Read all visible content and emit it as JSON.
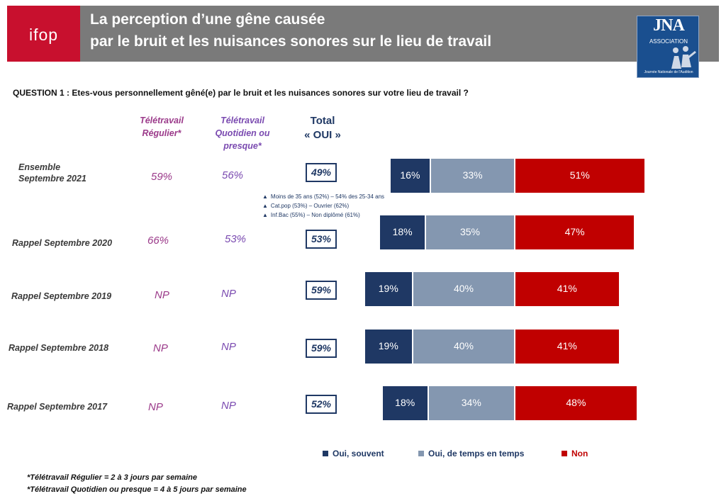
{
  "header": {
    "logo_text": "ifop",
    "title_line1": "La perception d’une gêne causée",
    "title_line2": "par le bruit et les nuisances sonores sur le lieu de travail",
    "partner_logo": {
      "name": "JNA",
      "sub": "ASSOCIATION",
      "caption": "Journée Nationale de l'Audition"
    }
  },
  "question": "QUESTION 1  : Etes-vous personnellement gêné(e) par le bruit et les nuisances sonores sur votre lieu de travail ?",
  "columns": {
    "teletravail_regulier": [
      "Télétravail",
      "Régulier*"
    ],
    "teletravail_quotidien": [
      "Télétravail",
      "Quotidien ou",
      "presque*"
    ],
    "total": [
      "Total",
      "« OUI »"
    ]
  },
  "notes": [
    "Moins de 35 ans (52%) – 54% des 25-34 ans",
    "Cat.pop (53%) – Ouvrier (62%)",
    "Inf.Bac (55%) – Non diplômé (61%)"
  ],
  "colors": {
    "oui_souvent": "#1f3864",
    "oui_temps": "#8497b0",
    "non": "#c00000",
    "header": "#7a7a7a",
    "ifop": "#c8102e"
  },
  "chart_data": {
    "type": "bar",
    "orientation": "horizontal",
    "stacked": true,
    "categories": [
      "Ensemble Septembre 2021",
      "Rappel Septembre 2020",
      "Rappel Septembre 2019",
      "Rappel Septembre 2018",
      "Rappel Septembre 2017"
    ],
    "rows": [
      {
        "label": [
          "Ensemble",
          "Septembre 2021"
        ],
        "teletravail_regulier": "59%",
        "teletravail_quotidien": "56%",
        "total_oui": "49%"
      },
      {
        "label": [
          "Rappel Septembre 2020"
        ],
        "teletravail_regulier": "66%",
        "teletravail_quotidien": "53%",
        "total_oui": "53%"
      },
      {
        "label": [
          "Rappel Septembre 2019"
        ],
        "teletravail_regulier": "NP",
        "teletravail_quotidien": "NP",
        "total_oui": "59%"
      },
      {
        "label": [
          "Rappel Septembre 2018"
        ],
        "teletravail_regulier": "NP",
        "teletravail_quotidien": "NP",
        "total_oui": "59%"
      },
      {
        "label": [
          "Rappel Septembre 2017"
        ],
        "teletravail_regulier": "NP",
        "teletravail_quotidien": "NP",
        "total_oui": "52%"
      }
    ],
    "series": [
      {
        "name": "Oui, souvent",
        "values": [
          16,
          18,
          19,
          19,
          18
        ],
        "labels": [
          "16%",
          "18%",
          "19%",
          "19%",
          "18%"
        ]
      },
      {
        "name": "Oui, de temps en temps",
        "values": [
          33,
          35,
          40,
          40,
          34
        ],
        "labels": [
          "33%",
          "35%",
          "40%",
          "40%",
          "34%"
        ]
      },
      {
        "name": "Non",
        "values": [
          51,
          47,
          41,
          41,
          48
        ],
        "labels": [
          "51%",
          "47%",
          "41%",
          "41%",
          "48%"
        ]
      }
    ],
    "unit": "%",
    "legend_position": "bottom"
  },
  "footnotes": [
    "*Télétravail Régulier = 2 à 3 jours par semaine",
    "*Télétravail Quotidien ou presque = 4 à 5 jours par semaine"
  ]
}
